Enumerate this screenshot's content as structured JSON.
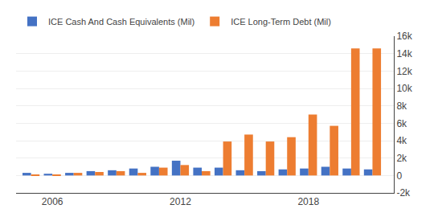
{
  "chart_data": {
    "type": "bar",
    "x": [
      2005,
      2006,
      2007,
      2008,
      2009,
      2010,
      2011,
      2012,
      2013,
      2014,
      2015,
      2016,
      2017,
      2018,
      2019,
      2020,
      2021
    ],
    "series": [
      {
        "name": "ICE Cash And Cash Equivalents (Mil)",
        "color": "#4472c4",
        "values": [
          300,
          200,
          300,
          500,
          600,
          800,
          1000,
          1700,
          900,
          900,
          600,
          500,
          700,
          800,
          1000,
          800,
          700
        ]
      },
      {
        "name": "ICE Long-Term Debt (Mil)",
        "color": "#ed7d31",
        "values": [
          100,
          100,
          300,
          400,
          500,
          300,
          900,
          1200,
          500,
          3900,
          4700,
          3900,
          4400,
          7000,
          5700,
          14600,
          14600
        ]
      }
    ],
    "xlim": [
      2004.3,
      2022.0
    ],
    "xticks": [
      2006,
      2012,
      2018
    ],
    "ylim": [
      -2000,
      16000
    ],
    "yticks": [
      {
        "value": -2000,
        "label": "-2k"
      },
      0,
      {
        "value": 2000,
        "label": "2k"
      },
      {
        "value": 4000,
        "label": "4k"
      },
      {
        "value": 6000,
        "label": "6k"
      },
      {
        "value": 8000,
        "label": "8k"
      },
      {
        "value": 10000,
        "label": "10k"
      },
      {
        "value": 12000,
        "label": "12k"
      },
      {
        "value": 14000,
        "label": "14k"
      },
      {
        "value": 16000,
        "label": "16k"
      }
    ],
    "grid": true,
    "legend": "top"
  }
}
